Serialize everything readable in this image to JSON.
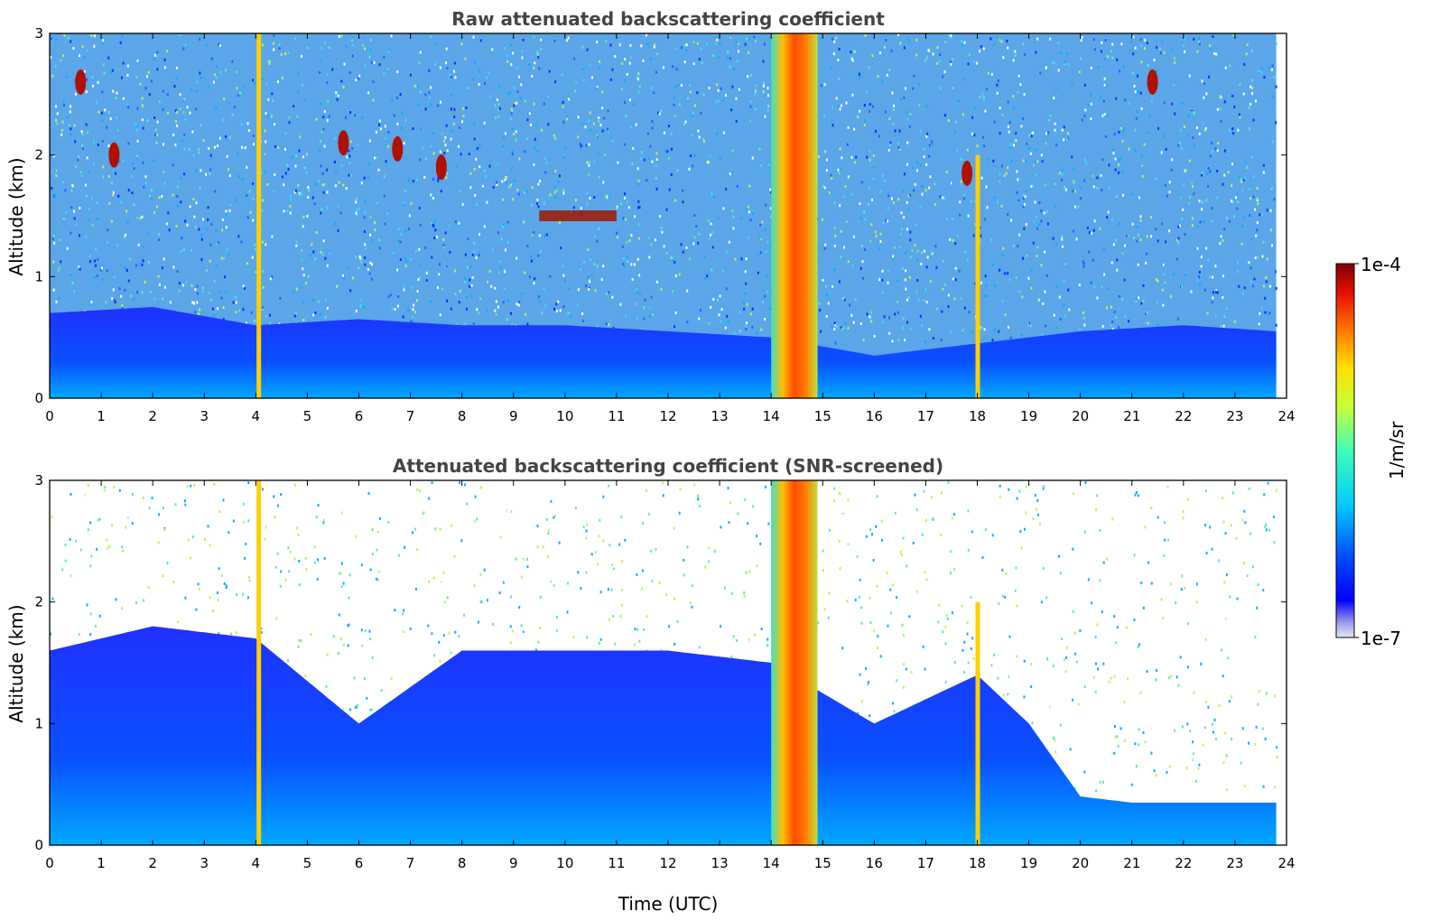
{
  "chart_data": [
    {
      "type": "heatmap",
      "title": "Raw attenuated backscattering coefficient",
      "xlabel": "",
      "ylabel": "Altitude (km)",
      "xlim": [
        0,
        24
      ],
      "ylim": [
        0,
        3
      ],
      "xticks": [
        "0",
        "1",
        "2",
        "3",
        "4",
        "5",
        "6",
        "7",
        "8",
        "9",
        "10",
        "11",
        "12",
        "13",
        "14",
        "15",
        "16",
        "17",
        "18",
        "19",
        "20",
        "21",
        "22",
        "23",
        "24"
      ],
      "yticks": [
        "0",
        "1",
        "2",
        "3"
      ],
      "data_end_time": 23.8,
      "features": [
        {
          "kind": "boundary_layer_top_km",
          "times": [
            0,
            2,
            4,
            6,
            8,
            10,
            12,
            14,
            16,
            18,
            20,
            22,
            23.8
          ],
          "values": [
            0.7,
            0.75,
            0.6,
            0.65,
            0.6,
            0.6,
            0.55,
            0.5,
            0.35,
            0.45,
            0.55,
            0.6,
            0.55
          ]
        },
        {
          "kind": "thick_cloud",
          "t_start": 14.0,
          "t_end": 14.9,
          "alt_top_km": 3.0
        },
        {
          "kind": "vertical_streak",
          "time": 4.05,
          "alt_top_km": 3.0
        },
        {
          "kind": "vertical_streak",
          "time": 18.0,
          "alt_top_km": 2.0
        },
        {
          "kind": "cloud_patch",
          "time": 0.6,
          "alt_km": 2.6
        },
        {
          "kind": "cloud_patch",
          "time": 1.25,
          "alt_km": 2.0
        },
        {
          "kind": "cloud_patch",
          "time": 5.7,
          "alt_km": 2.1
        },
        {
          "kind": "cloud_patch",
          "time": 6.75,
          "alt_km": 2.05
        },
        {
          "kind": "cloud_patch",
          "time": 7.6,
          "alt_km": 1.9
        },
        {
          "kind": "cloud_layer",
          "t_start": 9.5,
          "t_end": 11.0,
          "alt_km": 1.5
        },
        {
          "kind": "cloud_patch",
          "time": 17.8,
          "alt_km": 1.85
        },
        {
          "kind": "cloud_patch",
          "time": 21.4,
          "alt_km": 2.6
        }
      ]
    },
    {
      "type": "heatmap",
      "title": "Attenuated backscattering coefficient (SNR-screened)",
      "xlabel": "Time (UTC)",
      "ylabel": "Altitude (km)",
      "xlim": [
        0,
        24
      ],
      "ylim": [
        0,
        3
      ],
      "xticks": [
        "0",
        "1",
        "2",
        "3",
        "4",
        "5",
        "6",
        "7",
        "8",
        "9",
        "10",
        "11",
        "12",
        "13",
        "14",
        "15",
        "16",
        "17",
        "18",
        "19",
        "20",
        "21",
        "22",
        "23",
        "24"
      ],
      "yticks": [
        "0",
        "1",
        "2",
        "3"
      ],
      "data_end_time": 23.8,
      "features": [
        {
          "kind": "screened_signal_top_km",
          "times": [
            0,
            2,
            4,
            6,
            8,
            10,
            12,
            14,
            16,
            18,
            19,
            20,
            21,
            22,
            23.8
          ],
          "values": [
            1.6,
            1.8,
            1.7,
            1.0,
            1.6,
            1.6,
            1.6,
            1.5,
            1.0,
            1.4,
            1.0,
            0.4,
            0.35,
            0.35,
            0.35
          ]
        },
        {
          "kind": "thick_cloud",
          "t_start": 14.0,
          "t_end": 14.9,
          "alt_top_km": 3.0
        },
        {
          "kind": "vertical_streak",
          "time": 4.05,
          "alt_top_km": 3.0
        },
        {
          "kind": "vertical_streak",
          "time": 18.0,
          "alt_top_km": 2.0
        }
      ]
    }
  ],
  "colorbar": {
    "max_label": "1e-4",
    "min_label": "1e-7",
    "unit_label": "1/m/sr",
    "colormap": "jet",
    "scale": "log",
    "range": [
      1e-07,
      0.0001
    ]
  },
  "colors": {
    "axis": "#000000",
    "title": "#444444",
    "background": "#ffffff"
  }
}
